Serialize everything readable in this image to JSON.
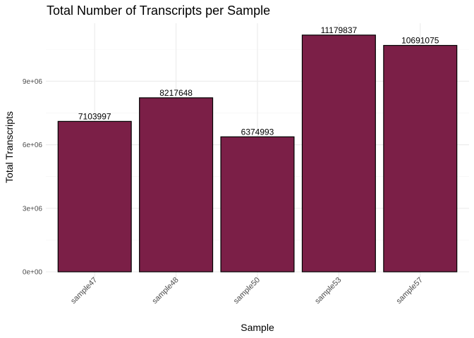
{
  "chart_data": {
    "type": "bar",
    "title": "Total Number of Transcripts per Sample",
    "xlabel": "Sample",
    "ylabel": "Total Transcripts",
    "categories": [
      "sample47",
      "sample48",
      "sample50",
      "sample53",
      "sample57"
    ],
    "values": [
      7103997,
      8217648,
      6374993,
      11179837,
      10691075
    ],
    "data_labels": [
      "7103997",
      "8217648",
      "6374993",
      "11179837",
      "10691075"
    ],
    "yticks": [
      0,
      3000000,
      6000000,
      9000000
    ],
    "ytick_labels": [
      "0e+00",
      "3e+06",
      "6e+06",
      "9e+06"
    ],
    "ylim": [
      0,
      11738829
    ],
    "grid": true,
    "colors": {
      "bar_fill": "#7B1F47",
      "bar_stroke": "#000000",
      "grid": "#EBEBEB"
    }
  }
}
